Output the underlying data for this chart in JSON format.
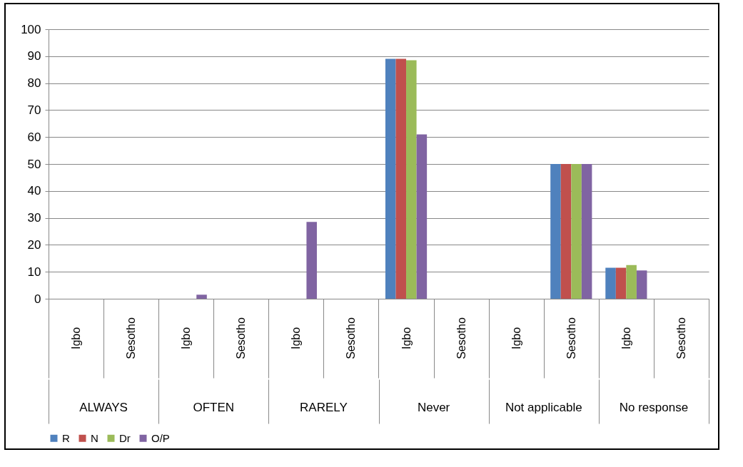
{
  "chart_data": {
    "type": "bar",
    "categories": [
      "Igbo",
      "Sesotho",
      "Igbo",
      "Sesotho",
      "Igbo",
      "Sesotho",
      "Igbo",
      "Sesotho",
      "Igbo",
      "Sesotho",
      "Igbo",
      "Sesotho"
    ],
    "series": [
      {
        "name": "R",
        "color": "#4f81bd",
        "values": [
          null,
          null,
          null,
          null,
          null,
          null,
          89,
          null,
          null,
          50,
          11.5,
          null
        ]
      },
      {
        "name": "N",
        "color": "#c0504d",
        "values": [
          null,
          null,
          null,
          null,
          null,
          null,
          89,
          null,
          null,
          50,
          11.5,
          null
        ]
      },
      {
        "name": "Dr",
        "color": "#9bbb59",
        "values": [
          null,
          null,
          null,
          null,
          null,
          null,
          88.5,
          null,
          null,
          50,
          12.5,
          null
        ]
      },
      {
        "name": "O/P",
        "color": "#8064a2",
        "values": [
          null,
          null,
          1.5,
          null,
          28.5,
          null,
          61,
          null,
          null,
          50,
          10.5,
          null
        ]
      }
    ],
    "annotations": [
      "ALWAYS",
      "OFTEN",
      "RARELY",
      "Never",
      "Not applicable",
      "No response"
    ],
    "ylim": [
      0,
      100
    ],
    "yticks": [
      0,
      10,
      20,
      30,
      40,
      50,
      60,
      70,
      80,
      90,
      100
    ],
    "grid": "y",
    "legend": "bottom"
  }
}
